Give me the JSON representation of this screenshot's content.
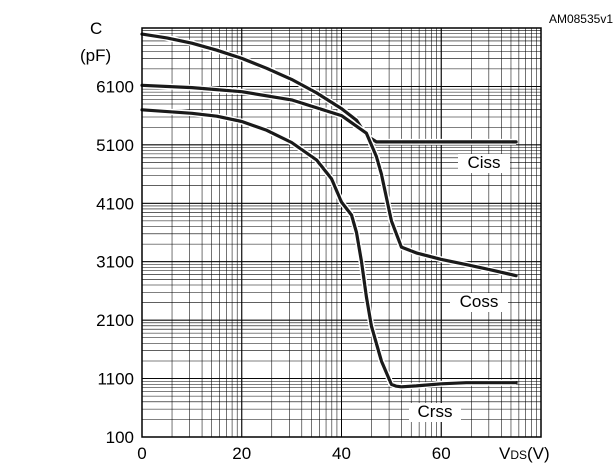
{
  "figure_code": "AM08535v1",
  "chart_data": {
    "type": "line",
    "y_axis_label_line1": "C",
    "y_axis_label_line2": "(pF)",
    "x_axis_label_main": "V",
    "x_axis_label_sub": "DS",
    "x_axis_label_unit": "(V)",
    "x_ticks": [
      0,
      20,
      40,
      60
    ],
    "x_tick_labels": [
      "0",
      "20",
      "40",
      "60"
    ],
    "y_ticks": [
      100,
      1100,
      2100,
      3100,
      4100,
      5100,
      6100
    ],
    "y_tick_labels": [
      "100",
      "1100",
      "2100",
      "3100",
      "4100",
      "5100",
      "6100"
    ],
    "xlim": [
      0,
      80
    ],
    "ylim": [
      100,
      7100
    ],
    "grid": true,
    "series": [
      {
        "name": "Ciss",
        "x": [
          0,
          5,
          10,
          15,
          20,
          25,
          30,
          35,
          40,
          43,
          45,
          47,
          50,
          55,
          60,
          65,
          70,
          75
        ],
        "y": [
          6995,
          6930,
          6840,
          6720,
          6580,
          6410,
          6220,
          5990,
          5720,
          5520,
          5260,
          5150,
          5150,
          5150,
          5150,
          5150,
          5150,
          5150
        ]
      },
      {
        "name": "Coss",
        "x": [
          0,
          10,
          20,
          30,
          40,
          45,
          47,
          48,
          50,
          52,
          55,
          60,
          65,
          70,
          75
        ],
        "y": [
          6120,
          6080,
          6010,
          5870,
          5600,
          5300,
          4900,
          4600,
          3800,
          3350,
          3250,
          3140,
          3050,
          2960,
          2860
        ]
      },
      {
        "name": "Crss",
        "x": [
          0,
          10,
          15,
          20,
          25,
          30,
          35,
          38,
          40,
          42,
          43,
          44,
          45,
          46,
          48,
          50,
          51,
          52,
          55,
          60,
          65,
          70,
          75
        ],
        "y": [
          5700,
          5640,
          5590,
          5500,
          5350,
          5140,
          4840,
          4520,
          4120,
          3900,
          3600,
          3100,
          2500,
          2000,
          1400,
          1000,
          970,
          960,
          975,
          1010,
          1030,
          1030,
          1030
        ]
      }
    ],
    "curve_labels": [
      "Ciss",
      "Coss",
      "Crss"
    ]
  }
}
